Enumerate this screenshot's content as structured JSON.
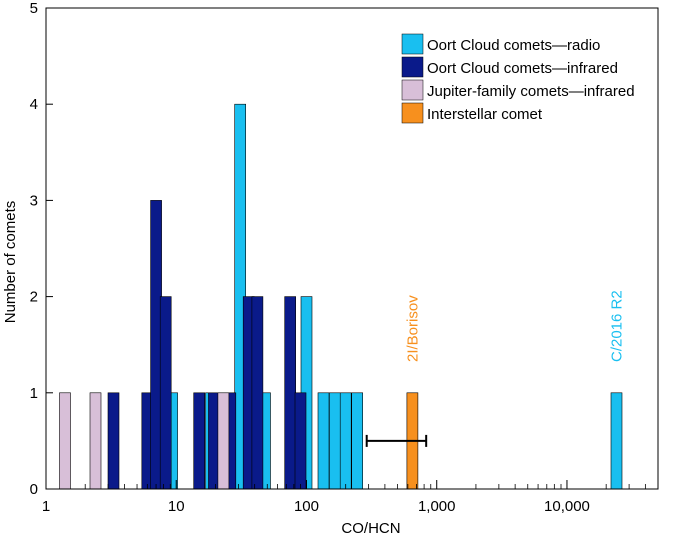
{
  "chart_data": {
    "type": "bar",
    "title": "",
    "xlabel": "CO/HCN",
    "ylabel": "Number of comets",
    "xscale": "log",
    "xlim": [
      1,
      50000
    ],
    "ylim": [
      0,
      5
    ],
    "x_ticks": [
      {
        "value": 1,
        "label": "1"
      },
      {
        "value": 10,
        "label": "10"
      },
      {
        "value": 100,
        "label": "100"
      },
      {
        "value": 1000,
        "label": "1,000"
      },
      {
        "value": 10000,
        "label": "10,000"
      }
    ],
    "y_ticks": [
      0,
      1,
      2,
      3,
      4,
      5
    ],
    "grid": false,
    "legend_position": "top-right",
    "colors": {
      "oort_radio": "#19bff0",
      "oort_infrared": "#0a1a8a",
      "jfc_infrared": "#d8bfd8",
      "interstellar": "#f7901e",
      "error_bar": "#000000"
    },
    "series": [
      {
        "name": "Oort Cloud comets—radio",
        "color_key": "oort_radio",
        "bars": [
          [
            9.3,
            1
          ],
          [
            18.5,
            1
          ],
          [
            31,
            4
          ],
          [
            48,
            1
          ],
          [
            100,
            2
          ],
          [
            135,
            1
          ],
          [
            165,
            1
          ],
          [
            200,
            1
          ],
          [
            245,
            1
          ],
          [
            24000,
            1
          ]
        ]
      },
      {
        "name": "Oort Cloud comets—infrared",
        "color_key": "oort_infrared",
        "bars": [
          [
            3.3,
            1
          ],
          [
            6.0,
            1
          ],
          [
            7.0,
            3
          ],
          [
            8.3,
            2
          ],
          [
            15,
            1
          ],
          [
            19.5,
            1
          ],
          [
            26,
            1
          ],
          [
            36,
            2
          ],
          [
            42,
            2
          ],
          [
            75,
            2
          ],
          [
            90,
            1
          ]
        ]
      },
      {
        "name": "Jupiter-family comets—infrared",
        "color_key": "jfc_infrared",
        "bars": [
          [
            1.4,
            1
          ],
          [
            2.4,
            1
          ],
          [
            23,
            1
          ]
        ]
      },
      {
        "name": "Interstellar comet",
        "color_key": "interstellar",
        "bars": [
          [
            650,
            1
          ]
        ]
      }
    ],
    "error_bars": [
      {
        "x_low": 290,
        "x_high": 830,
        "y": 0.5
      }
    ],
    "annotations": [
      {
        "text": "2I/Borisov",
        "x": 650,
        "color_key": "interstellar"
      },
      {
        "text": "C/2016 R2",
        "x": 24000,
        "color_key": "oort_radio"
      }
    ]
  }
}
